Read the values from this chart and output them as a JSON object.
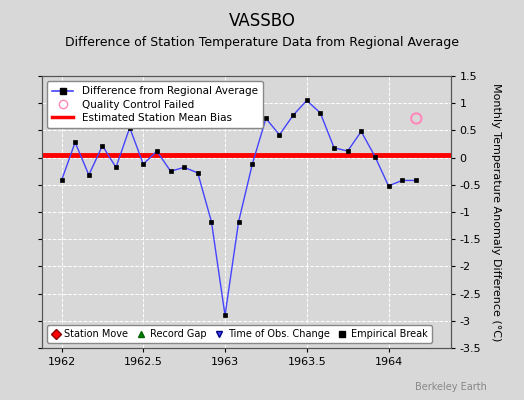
{
  "title": "VASSBO",
  "subtitle": "Difference of Station Temperature Data from Regional Average",
  "ylabel_right": "Monthly Temperature Anomaly Difference (°C)",
  "watermark": "Berkeley Earth",
  "xlim": [
    1961.88,
    1964.38
  ],
  "ylim": [
    -3.5,
    1.5
  ],
  "yticks": [
    -3.5,
    -3,
    -2.5,
    -2,
    -1.5,
    -1,
    -0.5,
    0,
    0.5,
    1,
    1.5
  ],
  "xticks": [
    1962,
    1962.5,
    1963,
    1963.5,
    1964
  ],
  "xtick_labels": [
    "1962",
    "1962.5",
    "1963",
    "1963.5",
    "1964"
  ],
  "bias_line": 0.05,
  "bias_color": "#ff0000",
  "line_color": "#4444ff",
  "line_marker_color": "#000000",
  "line_marker_size": 3.5,
  "background_color": "#d8d8d8",
  "plot_bg_color": "#d8d8d8",
  "grid_color": "#ffffff",
  "grid_alpha": 1.0,
  "qc_failed_x": [
    1964.17
  ],
  "qc_failed_y": [
    0.72
  ],
  "data_x": [
    1962.0,
    1962.083,
    1962.167,
    1962.25,
    1962.333,
    1962.417,
    1962.5,
    1962.583,
    1962.667,
    1962.75,
    1962.833,
    1962.917,
    1963.0,
    1963.083,
    1963.167,
    1963.25,
    1963.333,
    1963.417,
    1963.5,
    1963.583,
    1963.667,
    1963.75,
    1963.833,
    1963.917,
    1964.0,
    1964.083,
    1964.17
  ],
  "data_y": [
    -0.42,
    0.28,
    -0.32,
    0.22,
    -0.18,
    0.55,
    -0.12,
    0.12,
    -0.25,
    -0.18,
    -0.28,
    -1.18,
    -2.9,
    -1.18,
    -0.12,
    0.72,
    0.42,
    0.78,
    1.05,
    0.82,
    0.18,
    0.12,
    0.48,
    0.02,
    -0.52,
    -0.42,
    -0.42
  ],
  "title_fontsize": 12,
  "subtitle_fontsize": 9,
  "tick_fontsize": 8,
  "ylabel_fontsize": 8
}
